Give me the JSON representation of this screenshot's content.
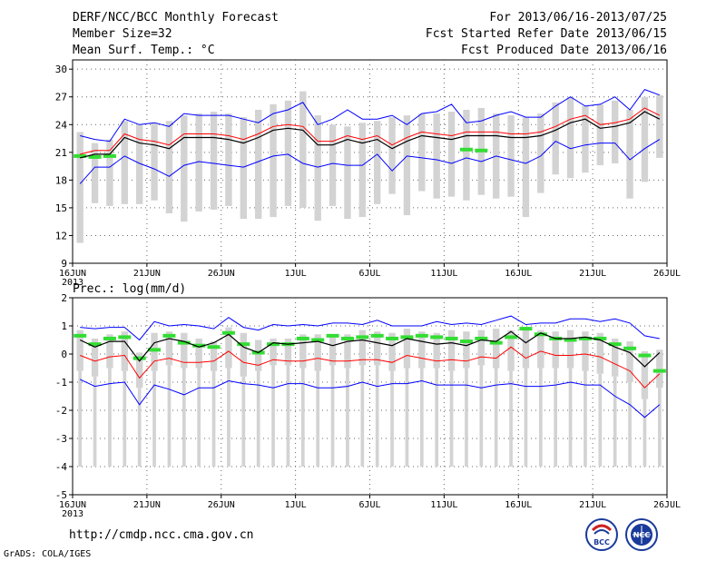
{
  "header": {
    "title": "DERF/NCC/BCC Monthly Forecast",
    "member_size": "Member Size=32",
    "variable": "Mean Surf. Temp.: °C",
    "period": "For 2013/06/16-2013/07/25",
    "start_refer": "Fcst Started Refer Date 2013/06/15",
    "produced": "Fcst Produced Date 2013/06/16"
  },
  "footer": {
    "url": "http://cmdp.ncc.cma.gov.cn",
    "credit": "GrADS: COLA/IGES",
    "logo_left": "BCC",
    "logo_right": "NCC"
  },
  "colors": {
    "box": "#d3d3d3",
    "mean": "#000000",
    "upper_lower": "#0000ff",
    "clim": "#ff0000",
    "observed": "#33dd33"
  },
  "chart_data": [
    {
      "type": "line",
      "title": "Mean Surf. Temp.: °C",
      "x_start": "16JUN",
      "x_end": "26JUL",
      "x_ticks": [
        "16JUN",
        "21JUN",
        "26JUN",
        "1JUL",
        "6JUL",
        "11JUL",
        "16JUL",
        "21JUL",
        "26JUL"
      ],
      "x_year_label": "2013",
      "ylim": [
        9,
        31
      ],
      "y_ticks": [
        "9",
        "12",
        "15",
        "18",
        "21",
        "24",
        "27",
        "30"
      ],
      "days": 40,
      "box_min": [
        11.2,
        15.5,
        15.2,
        15.4,
        15.4,
        15.8,
        14.4,
        13.5,
        14.6,
        14.8,
        15.2,
        13.8,
        13.8,
        14.0,
        15.2,
        15.0,
        13.6,
        15.2,
        13.8,
        14.0,
        15.4,
        16.5,
        14.2,
        16.8,
        16.0,
        16.2,
        15.8,
        16.4,
        16.0,
        16.2,
        14.0,
        16.6,
        18.6,
        18.2,
        18.8,
        19.6,
        19.8,
        16.0,
        17.8,
        20.4
      ],
      "box_max": [
        23.2,
        22.0,
        22.4,
        24.4,
        24.0,
        24.2,
        24.4,
        25.0,
        25.2,
        25.4,
        25.2,
        24.8,
        25.6,
        26.2,
        26.6,
        27.6,
        25.0,
        24.0,
        23.8,
        24.2,
        24.4,
        24.8,
        25.0,
        25.2,
        25.2,
        25.4,
        25.6,
        25.8,
        25.2,
        25.0,
        24.8,
        25.2,
        26.4,
        27.0,
        26.0,
        26.2,
        26.6,
        25.6,
        27.0,
        27.2
      ],
      "upper": [
        22.8,
        22.4,
        22.2,
        24.6,
        24.0,
        24.2,
        23.8,
        25.2,
        25.0,
        25.0,
        25.0,
        24.6,
        24.2,
        25.2,
        25.6,
        26.4,
        24.0,
        24.6,
        25.6,
        24.6,
        24.6,
        25.0,
        24.0,
        25.2,
        25.4,
        26.2,
        24.2,
        24.4,
        25.0,
        25.4,
        24.8,
        24.8,
        26.0,
        27.0,
        26.0,
        26.2,
        27.0,
        25.6,
        27.8,
        27.2
      ],
      "lower": [
        17.6,
        19.4,
        19.4,
        20.6,
        19.8,
        19.2,
        18.4,
        19.6,
        20.0,
        19.8,
        19.6,
        19.4,
        20.0,
        20.6,
        20.8,
        19.8,
        19.4,
        19.8,
        19.6,
        19.6,
        20.8,
        19.0,
        20.6,
        20.4,
        20.2,
        19.8,
        20.4,
        20.0,
        20.6,
        20.2,
        19.8,
        20.6,
        22.2,
        21.4,
        21.8,
        22.0,
        22.0,
        20.2,
        21.4,
        22.4
      ],
      "mean": [
        20.4,
        20.8,
        20.8,
        22.6,
        22.0,
        21.8,
        21.4,
        22.6,
        22.6,
        22.6,
        22.4,
        22.0,
        22.6,
        23.4,
        23.6,
        23.4,
        21.8,
        21.8,
        22.4,
        22.0,
        22.4,
        21.4,
        22.2,
        22.8,
        22.6,
        22.4,
        22.8,
        22.8,
        22.8,
        22.6,
        22.6,
        22.8,
        23.4,
        24.2,
        24.6,
        23.6,
        23.8,
        24.2,
        25.4,
        24.6
      ],
      "clim": [
        20.8,
        21.2,
        21.2,
        23.0,
        22.4,
        22.2,
        21.8,
        23.0,
        23.0,
        23.0,
        22.8,
        22.4,
        23.0,
        23.8,
        24.0,
        23.8,
        22.2,
        22.2,
        22.8,
        22.4,
        22.8,
        21.8,
        22.6,
        23.2,
        23.0,
        22.8,
        23.2,
        23.2,
        23.2,
        23.0,
        23.0,
        23.2,
        23.8,
        24.6,
        25.0,
        24.0,
        24.2,
        24.6,
        25.8,
        25.0
      ],
      "observed": [
        20.6,
        20.5,
        20.6,
        null,
        null,
        null,
        null,
        null,
        null,
        null,
        null,
        null,
        null,
        null,
        null,
        null,
        null,
        null,
        null,
        null,
        null,
        null,
        null,
        null,
        null,
        null,
        21.3,
        21.2,
        null,
        null,
        null,
        null,
        null,
        null,
        null,
        null,
        null,
        null,
        null,
        null
      ]
    },
    {
      "type": "line",
      "title": "Prec.: log(mm/d)",
      "x_start": "16JUN",
      "x_end": "26JUL",
      "x_ticks": [
        "16JUN",
        "21JUN",
        "26JUN",
        "1JUL",
        "6JUL",
        "11JUL",
        "16JUL",
        "21JUL",
        "26JUL"
      ],
      "x_year_label": "2013",
      "ylim": [
        -5,
        2
      ],
      "y_ticks": [
        "-5",
        "-4",
        "-3",
        "-2",
        "-1",
        "0",
        "1",
        "2"
      ],
      "days": 40,
      "box_min": [
        -4,
        -4,
        -4,
        -4,
        -4,
        -4,
        -4,
        -4,
        -4,
        -4,
        -4,
        -4,
        -4,
        -4,
        -4,
        -4,
        -4,
        -4,
        -4,
        -4,
        -4,
        -4,
        -4,
        -4,
        -4,
        -4,
        -4,
        -4,
        -4,
        -4,
        -4,
        -4,
        -4,
        -4,
        -4,
        -4,
        -4,
        -4,
        -4,
        -4
      ],
      "box_max": [
        0.85,
        0.55,
        0.7,
        0.8,
        0.05,
        0.75,
        0.8,
        0.75,
        0.55,
        0.45,
        0.95,
        0.75,
        0.5,
        0.55,
        0.55,
        0.7,
        0.7,
        0.7,
        0.7,
        0.85,
        0.8,
        0.75,
        0.9,
        0.8,
        0.75,
        0.85,
        0.8,
        0.85,
        0.9,
        0.85,
        0.9,
        0.85,
        0.8,
        0.85,
        0.8,
        0.75,
        0.55,
        0.45,
        0.1,
        0.15
      ],
      "box_low": [
        -0.6,
        -0.8,
        -0.5,
        -0.6,
        -1.2,
        -0.6,
        -0.4,
        -0.5,
        -0.5,
        -0.6,
        -0.5,
        -0.8,
        -0.6,
        -0.4,
        -0.4,
        -0.5,
        -0.6,
        -0.4,
        -0.5,
        -0.4,
        -0.4,
        -0.6,
        -0.5,
        -0.5,
        -0.5,
        -0.6,
        -0.5,
        -0.4,
        -0.5,
        -0.6,
        -0.5,
        -0.5,
        -0.5,
        -0.5,
        -0.6,
        -0.7,
        -0.8,
        -1.0,
        -1.6,
        -1.2
      ],
      "upper": [
        0.95,
        0.9,
        0.95,
        0.95,
        0.5,
        1.15,
        1.0,
        1.05,
        1.0,
        0.9,
        1.3,
        0.95,
        0.85,
        1.05,
        1.0,
        1.05,
        1.0,
        1.1,
        1.1,
        1.05,
        1.2,
        1.0,
        1.0,
        1.0,
        1.15,
        1.05,
        1.1,
        1.05,
        1.2,
        1.35,
        1.05,
        1.1,
        1.1,
        1.25,
        1.25,
        1.15,
        1.25,
        1.1,
        0.65,
        0.55
      ],
      "lower": [
        -0.9,
        -1.15,
        -1.05,
        -1.0,
        -1.8,
        -1.1,
        -1.25,
        -1.45,
        -1.2,
        -1.2,
        -0.95,
        -1.05,
        -1.1,
        -1.2,
        -1.05,
        -1.05,
        -1.2,
        -1.2,
        -1.15,
        -1.0,
        -1.15,
        -1.05,
        -1.05,
        -0.95,
        -1.1,
        -1.1,
        -1.1,
        -1.2,
        -1.1,
        -1.05,
        -1.15,
        -1.15,
        -1.1,
        -1.0,
        -1.1,
        -1.1,
        -1.5,
        -1.8,
        -2.25,
        -1.8
      ],
      "mean": [
        0.5,
        0.25,
        0.45,
        0.45,
        -0.25,
        0.4,
        0.55,
        0.45,
        0.25,
        0.4,
        0.7,
        0.25,
        0.05,
        0.4,
        0.35,
        0.4,
        0.45,
        0.3,
        0.45,
        0.5,
        0.4,
        0.3,
        0.55,
        0.45,
        0.35,
        0.4,
        0.3,
        0.5,
        0.45,
        0.8,
        0.4,
        0.75,
        0.55,
        0.55,
        0.6,
        0.5,
        0.25,
        0.05,
        -0.45,
        0.05
      ],
      "clim": [
        -0.05,
        -0.25,
        -0.1,
        -0.05,
        -0.85,
        -0.25,
        -0.15,
        -0.3,
        -0.3,
        -0.25,
        0.1,
        -0.3,
        -0.4,
        -0.2,
        -0.25,
        -0.25,
        -0.15,
        -0.25,
        -0.25,
        -0.2,
        -0.2,
        -0.3,
        -0.05,
        -0.15,
        -0.25,
        -0.2,
        -0.25,
        -0.1,
        -0.15,
        0.25,
        -0.15,
        0.1,
        -0.05,
        -0.05,
        0.0,
        -0.1,
        -0.35,
        -0.6,
        -1.2,
        -0.7
      ],
      "observed": [
        0.65,
        0.35,
        0.55,
        0.6,
        -0.15,
        0.15,
        0.65,
        0.4,
        0.3,
        0.25,
        0.75,
        0.35,
        0.05,
        0.35,
        0.35,
        0.55,
        0.5,
        0.65,
        0.55,
        0.6,
        0.65,
        0.55,
        0.6,
        0.65,
        0.6,
        0.55,
        0.45,
        0.55,
        0.4,
        0.6,
        0.9,
        0.7,
        0.55,
        0.5,
        0.55,
        0.55,
        0.35,
        0.2,
        -0.05,
        -0.6
      ]
    }
  ]
}
